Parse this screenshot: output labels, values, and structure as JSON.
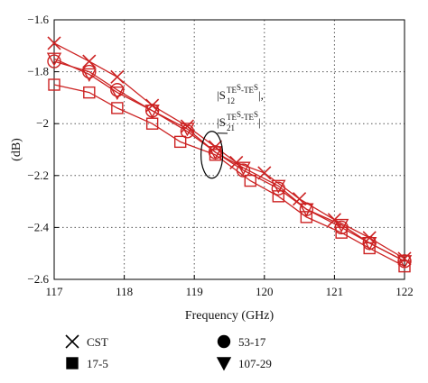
{
  "chart_data": {
    "type": "line",
    "xlabel": "Frequency (GHz)",
    "ylabel": "(dB)",
    "xlim": [
      117,
      122
    ],
    "ylim": [
      -2.6,
      -1.6
    ],
    "xticks": [
      117,
      118,
      119,
      120,
      121,
      122
    ],
    "yticks": [
      -1.6,
      -1.8,
      -2,
      -2.2,
      -2.4,
      -2.6
    ],
    "xtick_labels": [
      "117",
      "118",
      "119",
      "120",
      "121",
      "122"
    ],
    "ytick_labels": [
      "−1.6",
      "−1.8",
      "−2",
      "−2.2",
      "−2.4",
      "−2.6"
    ],
    "grid": true,
    "series_color": "#cc2222",
    "series": [
      {
        "name": "CST",
        "marker": "x",
        "x": [
          117.0,
          117.5,
          117.9,
          118.4,
          118.9,
          119.3,
          119.6,
          120.0,
          120.5,
          121.0,
          121.5,
          122.0
        ],
        "y": [
          -1.69,
          -1.76,
          -1.82,
          -1.93,
          -2.01,
          -2.09,
          -2.15,
          -2.19,
          -2.29,
          -2.37,
          -2.44,
          -2.52
        ]
      },
      {
        "name": "17-5",
        "marker": "square",
        "x": [
          117.0,
          117.5,
          117.9,
          118.4,
          118.8,
          119.3,
          119.8,
          120.2,
          120.6,
          121.1,
          121.5,
          122.0
        ],
        "y": [
          -1.85,
          -1.88,
          -1.94,
          -2.0,
          -2.07,
          -2.12,
          -2.22,
          -2.28,
          -2.36,
          -2.42,
          -2.48,
          -2.55
        ]
      },
      {
        "name": "53-17",
        "marker": "circle",
        "x": [
          117.0,
          117.5,
          117.9,
          118.4,
          118.9,
          119.3,
          119.7,
          120.2,
          120.6,
          121.1,
          121.5,
          122.0
        ],
        "y": [
          -1.76,
          -1.8,
          -1.87,
          -1.95,
          -2.03,
          -2.11,
          -2.18,
          -2.25,
          -2.33,
          -2.4,
          -2.46,
          -2.53
        ]
      },
      {
        "name": "107-29",
        "marker": "triangle-down",
        "x": [
          117.0,
          117.5,
          117.9,
          118.4,
          118.9,
          119.3,
          119.7,
          120.2,
          120.6,
          121.1,
          121.5,
          122.0
        ],
        "y": [
          -1.75,
          -1.81,
          -1.88,
          -1.95,
          -2.02,
          -2.11,
          -2.17,
          -2.24,
          -2.33,
          -2.39,
          -2.46,
          -2.53
        ]
      }
    ],
    "annotation": {
      "line1": {
        "base": "|S",
        "sub": "12",
        "sup": "TE",
        "sup2": "S",
        "mid": "-TE",
        "sup3": "S",
        "end": "|,"
      },
      "line2": {
        "base": "|S",
        "sub": "21",
        "sup": "TE",
        "sup2": "S",
        "mid": "-TE",
        "sup3": "S",
        "end": "|"
      },
      "ellipse_center": [
        119.25,
        -2.12
      ]
    },
    "legend": [
      {
        "label": "CST",
        "marker": "x"
      },
      {
        "label": "53-17",
        "marker": "circle"
      },
      {
        "label": "17-5",
        "marker": "square"
      },
      {
        "label": "107-29",
        "marker": "triangle-down"
      }
    ]
  }
}
